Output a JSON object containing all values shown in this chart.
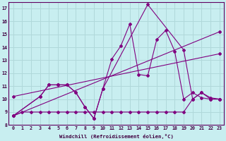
{
  "background_color": "#c8eef0",
  "line_color": "#800080",
  "grid_color": "#b0d8da",
  "xlabel": "Windchill (Refroidissement éolien,°C)",
  "ylim": [
    8,
    17.5
  ],
  "xlim": [
    -0.5,
    23.5
  ],
  "yticks": [
    8,
    9,
    10,
    11,
    12,
    13,
    14,
    15,
    16,
    17
  ],
  "xticks": [
    0,
    1,
    2,
    3,
    4,
    5,
    6,
    7,
    8,
    9,
    10,
    11,
    12,
    13,
    14,
    15,
    16,
    17,
    18,
    19,
    20,
    21,
    22,
    23
  ],
  "line1_x": [
    0,
    1,
    2,
    3,
    4,
    5,
    6,
    7,
    8,
    9,
    10,
    11,
    12,
    13,
    14,
    15,
    16,
    17,
    18,
    19,
    20,
    21,
    22,
    23
  ],
  "line1_y": [
    8.7,
    9.0,
    9.0,
    9.0,
    9.0,
    9.0,
    9.0,
    9.0,
    9.0,
    9.0,
    9.0,
    9.0,
    9.0,
    9.0,
    9.0,
    9.0,
    9.0,
    9.0,
    9.0,
    9.0,
    10.0,
    10.5,
    10.0,
    10.0
  ],
  "line2_x": [
    0,
    3,
    4,
    5,
    6,
    7,
    8,
    9,
    10,
    15,
    19,
    20,
    21,
    22,
    23
  ],
  "line2_y": [
    8.7,
    10.2,
    11.1,
    11.1,
    11.1,
    10.5,
    9.4,
    8.5,
    10.8,
    17.3,
    13.8,
    10.0,
    10.5,
    10.1,
    10.0
  ],
  "line3_x": [
    0,
    3,
    4,
    5,
    6,
    7,
    8,
    9,
    10,
    11,
    12,
    13,
    14,
    15,
    16,
    17,
    18,
    19,
    20,
    21,
    22,
    23
  ],
  "line3_y": [
    8.7,
    10.2,
    11.1,
    11.1,
    11.1,
    10.5,
    9.4,
    8.5,
    10.8,
    13.1,
    14.1,
    15.8,
    11.9,
    11.8,
    14.6,
    15.3,
    13.7,
    10.0,
    10.5,
    10.1,
    10.0,
    10.0
  ],
  "line4_x": [
    0,
    23
  ],
  "line4_y": [
    8.7,
    15.2
  ],
  "line5_x": [
    0,
    23
  ],
  "line5_y": [
    10.2,
    13.5
  ]
}
